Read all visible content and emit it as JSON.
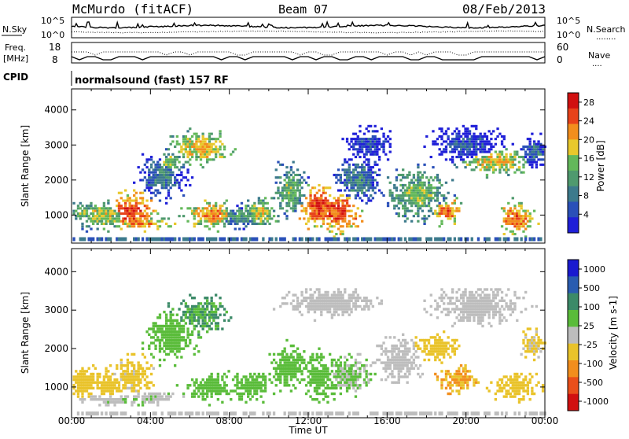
{
  "header": {
    "station": "McMurdo (fitACF)",
    "beam": "Beam 07",
    "date": "08/Feb/2013"
  },
  "noise_panel": {
    "left_label": "N.Sky",
    "right_label": "N.Search",
    "right_dots": "........",
    "left_top_tick": "10^5",
    "left_bottom_tick": "10^0",
    "right_top_tick": "10^5",
    "right_bottom_tick": "10^0"
  },
  "freq_panel": {
    "left_label_line1": "Freq.",
    "left_label_line2": "[MHz]",
    "left_top_tick": "18",
    "left_bottom_tick": "8",
    "right_label": "Nave",
    "right_dots": "....",
    "right_top_tick": "60",
    "right_bottom_tick": "0"
  },
  "cpid": {
    "label": "CPID",
    "text": "normalsound (fast) 157 RF"
  },
  "colors": {
    "power_scale": [
      "#1f1fd8",
      "#2a50b8",
      "#3c7a8c",
      "#4f9a6e",
      "#63b85a",
      "#e8c82c",
      "#f28e1d",
      "#e8421a",
      "#d11010"
    ],
    "velocity_scale": [
      "#1a1ad0",
      "#2a5cb0",
      "#3c8a68",
      "#5abc3a",
      "#bdbdbd",
      "#e9c32a",
      "#f28e1d",
      "#ea4f1a",
      "#d11010"
    ]
  },
  "chart_data": [
    {
      "type": "heatmap",
      "title": "",
      "xlabel": "",
      "ylabel": "Slant Range [km]",
      "x_ticks": [
        "00:00",
        "04:00",
        "08:00",
        "12:00",
        "16:00",
        "20:00",
        "00:00"
      ],
      "y_ticks": [
        "1000",
        "2000",
        "3000",
        "4000"
      ],
      "ylim": [
        200,
        4600
      ],
      "colorbar": {
        "label": "Power [dB]",
        "ticks": [
          "4",
          "8",
          "12",
          "16",
          "20",
          "24",
          "28"
        ],
        "range": [
          0,
          30
        ]
      },
      "blobs": [
        {
          "t": 0.5,
          "r": 1050,
          "dt": 0.7,
          "dr": 250,
          "v": 14
        },
        {
          "t": 1.5,
          "r": 1000,
          "dt": 1.2,
          "dr": 350,
          "v": 18
        },
        {
          "t": 3.0,
          "r": 1100,
          "dt": 0.9,
          "dr": 450,
          "v": 26
        },
        {
          "t": 3.5,
          "r": 750,
          "dt": 1.4,
          "dr": 150,
          "v": 22
        },
        {
          "t": 4.5,
          "r": 2100,
          "dt": 1.0,
          "dr": 500,
          "v": 10
        },
        {
          "t": 5.0,
          "r": 2500,
          "dt": 0.6,
          "dr": 300,
          "v": 16
        },
        {
          "t": 6.5,
          "r": 2900,
          "dt": 1.2,
          "dr": 400,
          "v": 20
        },
        {
          "t": 7.0,
          "r": 1000,
          "dt": 1.2,
          "dr": 300,
          "v": 22
        },
        {
          "t": 8.5,
          "r": 950,
          "dt": 1.0,
          "dr": 250,
          "v": 12
        },
        {
          "t": 9.5,
          "r": 1050,
          "dt": 0.8,
          "dr": 350,
          "v": 18
        },
        {
          "t": 11.0,
          "r": 1700,
          "dt": 0.7,
          "dr": 600,
          "v": 15
        },
        {
          "t": 12.5,
          "r": 1300,
          "dt": 0.8,
          "dr": 500,
          "v": 27
        },
        {
          "t": 13.5,
          "r": 1100,
          "dt": 0.9,
          "dr": 500,
          "v": 26
        },
        {
          "t": 14.5,
          "r": 2000,
          "dt": 1.0,
          "dr": 600,
          "v": 10
        },
        {
          "t": 15.0,
          "r": 3000,
          "dt": 1.0,
          "dr": 400,
          "v": 6
        },
        {
          "t": 17.5,
          "r": 1600,
          "dt": 1.3,
          "dr": 600,
          "v": 16
        },
        {
          "t": 19.0,
          "r": 1100,
          "dt": 0.6,
          "dr": 300,
          "v": 24
        },
        {
          "t": 20.0,
          "r": 3000,
          "dt": 1.5,
          "dr": 400,
          "v": 6
        },
        {
          "t": 21.5,
          "r": 2500,
          "dt": 1.5,
          "dr": 300,
          "v": 20
        },
        {
          "t": 22.5,
          "r": 900,
          "dt": 0.8,
          "dr": 400,
          "v": 24
        },
        {
          "t": 23.5,
          "r": 2800,
          "dt": 0.6,
          "dr": 400,
          "v": 8
        }
      ]
    },
    {
      "type": "heatmap",
      "title": "",
      "xlabel": "Time UT",
      "ylabel": "Slant Range [km]",
      "x_ticks": [
        "00:00",
        "04:00",
        "08:00",
        "12:00",
        "16:00",
        "20:00",
        "00:00"
      ],
      "y_ticks": [
        "1000",
        "2000",
        "3000",
        "4000"
      ],
      "ylim": [
        200,
        4600
      ],
      "colorbar": {
        "label": "Velocity [m s-1]",
        "ticks": [
          "1000",
          "500",
          "100",
          "25",
          "-25",
          "-100",
          "-500",
          "-1000"
        ],
        "range": [
          -1200,
          1200
        ]
      },
      "blobs": [
        {
          "t": 0.5,
          "r": 1100,
          "dt": 0.8,
          "dr": 350,
          "v": -200
        },
        {
          "t": 1.8,
          "r": 1050,
          "dt": 1.0,
          "dr": 300,
          "v": -250
        },
        {
          "t": 2.0,
          "r": 650,
          "dt": 1.5,
          "dr": 120,
          "v": 80
        },
        {
          "t": 3.0,
          "r": 1300,
          "dt": 0.9,
          "dr": 450,
          "v": -180
        },
        {
          "t": 4.0,
          "r": 700,
          "dt": 1.2,
          "dr": 150,
          "v": 90
        },
        {
          "t": 5.0,
          "r": 2300,
          "dt": 1.0,
          "dr": 500,
          "v": 250
        },
        {
          "t": 6.5,
          "r": 2900,
          "dt": 1.2,
          "dr": 400,
          "v": 400
        },
        {
          "t": 7.0,
          "r": 1000,
          "dt": 1.2,
          "dr": 300,
          "v": 300
        },
        {
          "t": 9.0,
          "r": 1000,
          "dt": 1.2,
          "dr": 300,
          "v": 280
        },
        {
          "t": 11.0,
          "r": 1500,
          "dt": 0.8,
          "dr": 500,
          "v": 250
        },
        {
          "t": 12.5,
          "r": 1300,
          "dt": 0.8,
          "dr": 500,
          "v": 220
        },
        {
          "t": 14.0,
          "r": 1300,
          "dt": 1.0,
          "dr": 400,
          "v": 150
        },
        {
          "t": 13.0,
          "r": 3200,
          "dt": 2.0,
          "dr": 300,
          "v": 0
        },
        {
          "t": 16.5,
          "r": 1700,
          "dt": 1.0,
          "dr": 500,
          "v": -60
        },
        {
          "t": 18.5,
          "r": 2000,
          "dt": 1.0,
          "dr": 300,
          "v": -250
        },
        {
          "t": 19.5,
          "r": 1200,
          "dt": 0.8,
          "dr": 300,
          "v": -400
        },
        {
          "t": 20.5,
          "r": 3100,
          "dt": 2.0,
          "dr": 400,
          "v": 0
        },
        {
          "t": 22.5,
          "r": 1000,
          "dt": 1.0,
          "dr": 300,
          "v": -200
        },
        {
          "t": 23.3,
          "r": 2100,
          "dt": 0.5,
          "dr": 300,
          "v": -150
        }
      ]
    }
  ]
}
